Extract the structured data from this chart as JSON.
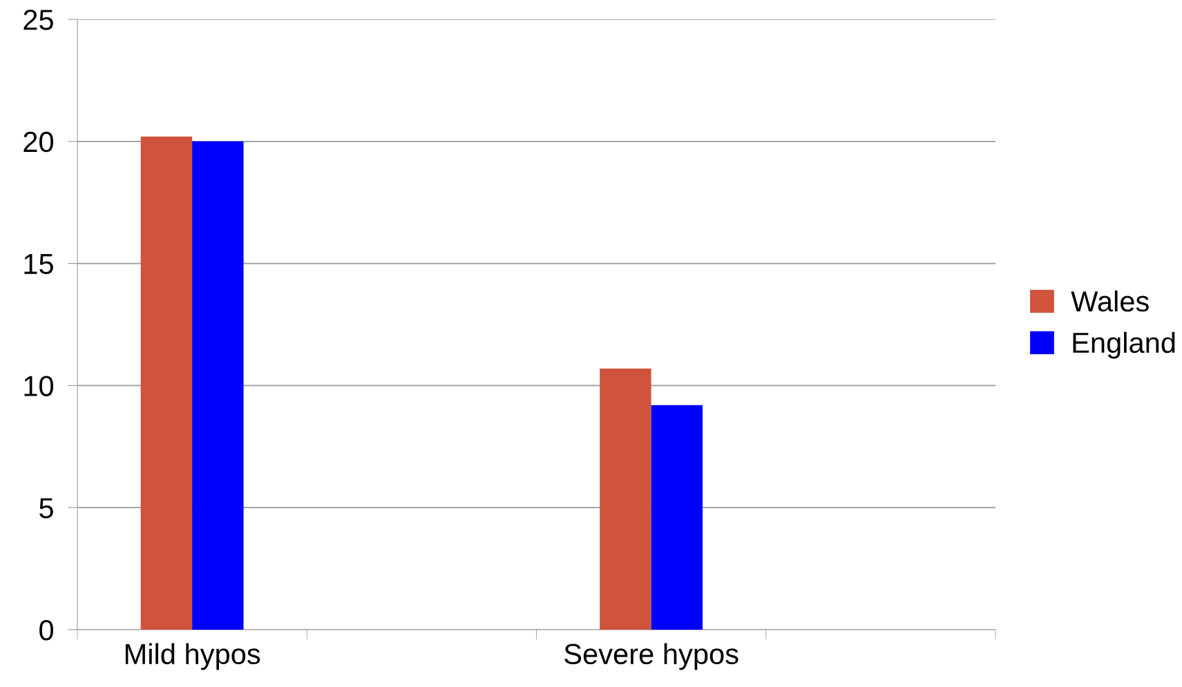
{
  "chart_data": {
    "type": "bar",
    "categories": [
      "Mild hypos",
      null,
      "Severe hypos",
      null
    ],
    "series": [
      {
        "name": "Wales",
        "color": "#d0533b",
        "values": [
          20.2,
          null,
          10.7,
          null
        ]
      },
      {
        "name": "England",
        "color": "#0000ff",
        "values": [
          20.0,
          null,
          9.2,
          null
        ]
      }
    ],
    "ylim": [
      0,
      25
    ],
    "yticks": [
      0,
      5,
      10,
      15,
      20,
      25
    ],
    "grid": "y",
    "legend": "right"
  }
}
